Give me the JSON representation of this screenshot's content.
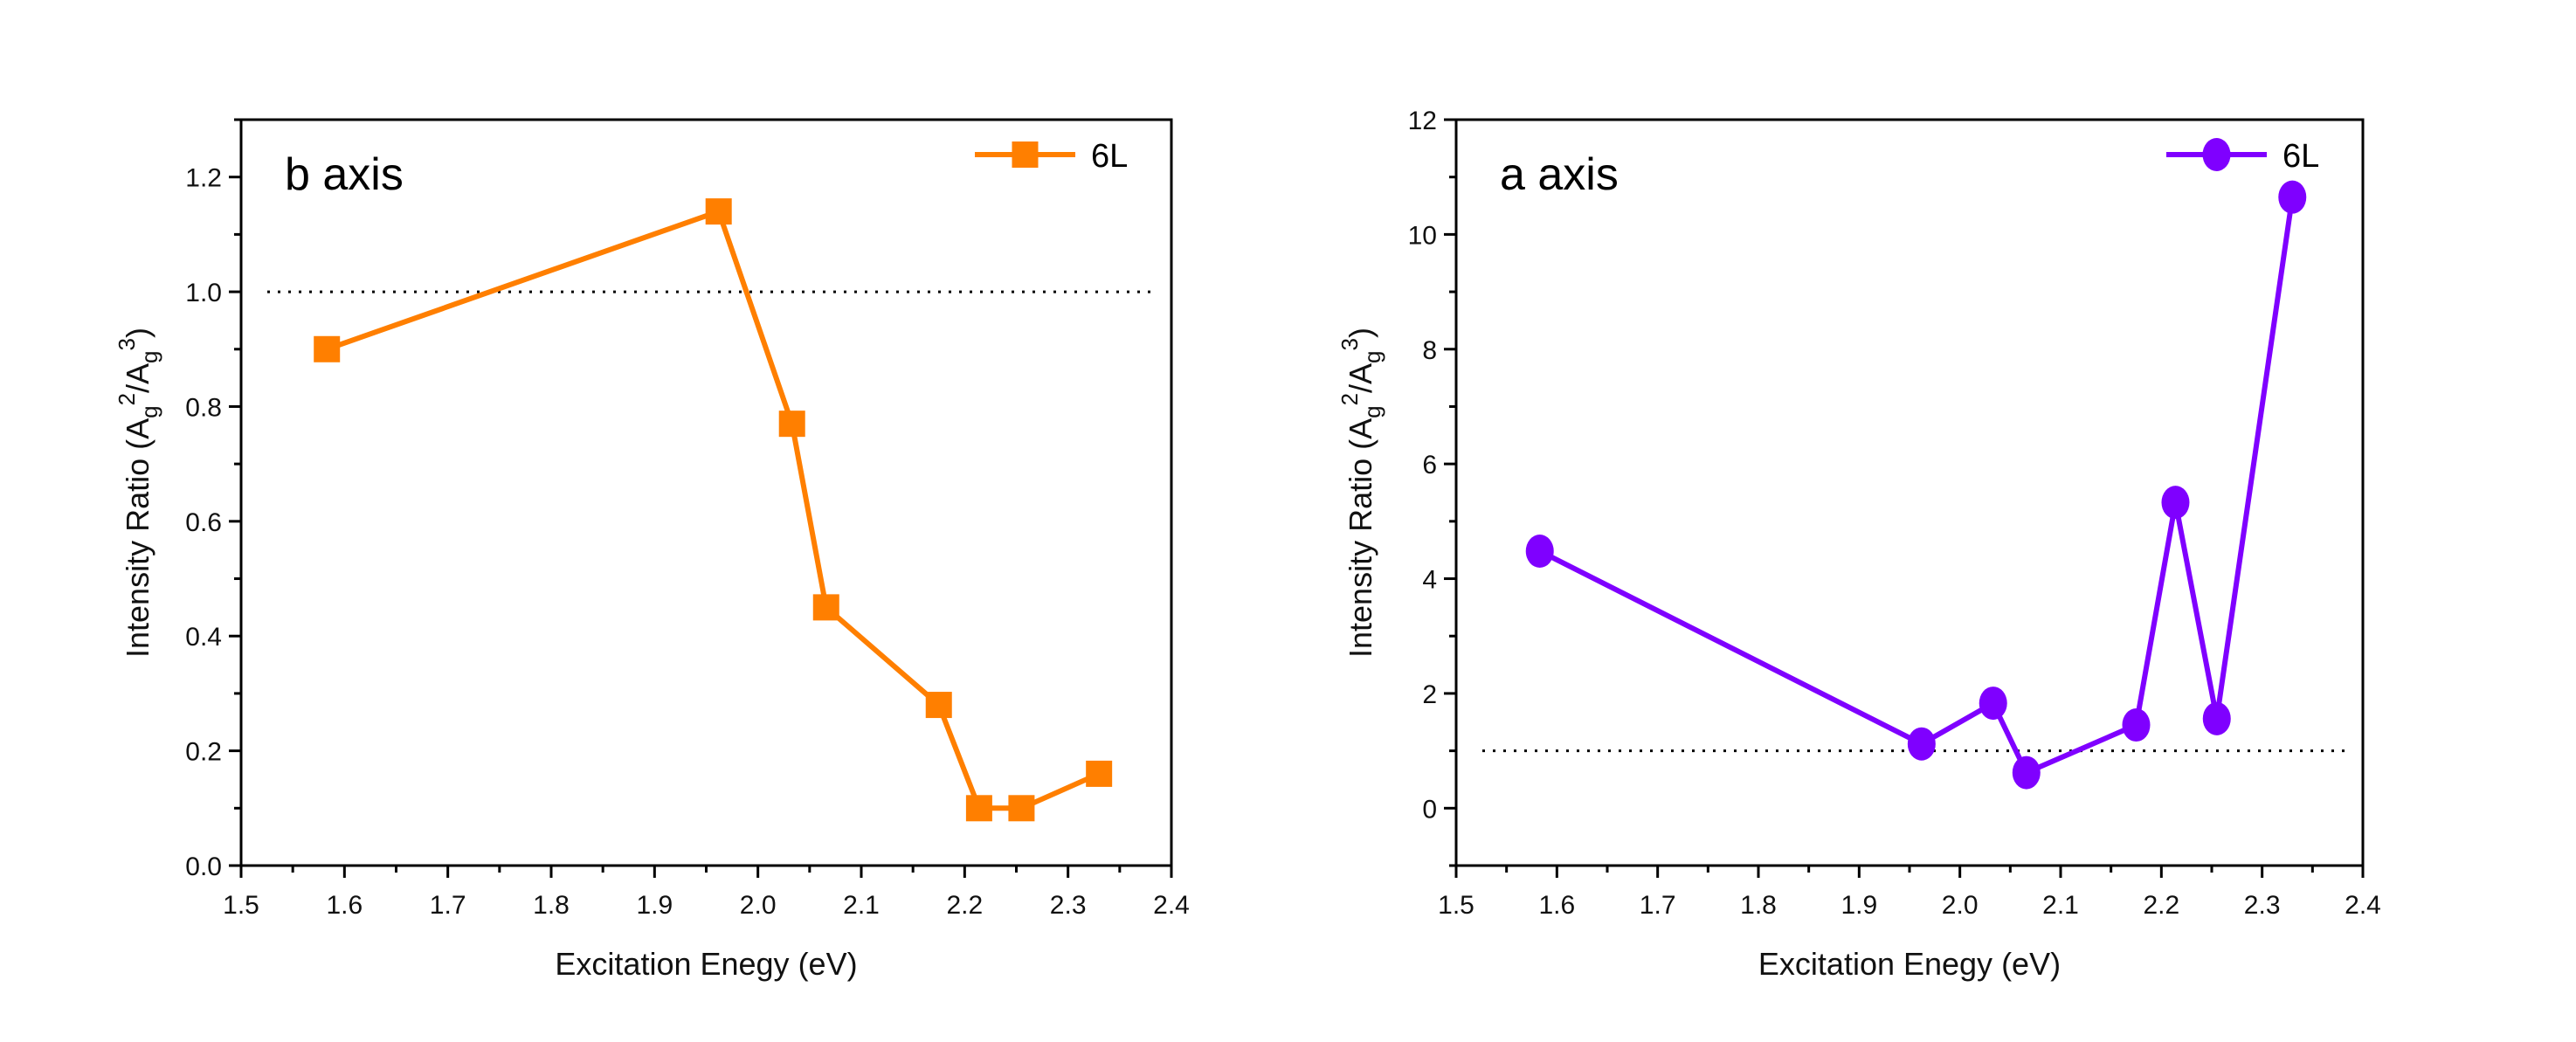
{
  "chart_data": [
    {
      "type": "line",
      "panel_label": "b axis",
      "xlabel": "Excitation Enegy (eV)",
      "ylabel_main": "Intensity Ratio (A",
      "ylabel_sub1": "g",
      "ylabel_sup1": "2",
      "ylabel_mid": "/A",
      "ylabel_sub2": "g",
      "ylabel_sup2": "3",
      "ylabel_end": ")",
      "xlim": [
        1.5,
        2.4
      ],
      "ylim": [
        0,
        1.3
      ],
      "xticks": [
        1.5,
        1.6,
        1.7,
        1.8,
        1.9,
        2.0,
        2.1,
        2.2,
        2.3,
        2.4
      ],
      "xtick_labels": [
        "1.5",
        "1.6",
        "1.7",
        "1.8",
        "1.9",
        "2.0",
        "2.1",
        "2.2",
        "2.3",
        "2.4"
      ],
      "yticks": [
        0,
        0.2,
        0.4,
        0.6,
        0.8,
        1.0,
        1.2
      ],
      "ytick_labels": [
        "0.0",
        "0.2",
        "0.4",
        "0.6",
        "0.8",
        "1.0",
        "1.2"
      ],
      "yminor": 0.1,
      "reference_line": 1.0,
      "legend_position": "top-right",
      "series": [
        {
          "name": "6L",
          "marker": "square",
          "color": "#FF7F00",
          "x": [
            1.583,
            1.962,
            2.033,
            2.066,
            2.175,
            2.214,
            2.255,
            2.33
          ],
          "y": [
            0.9,
            1.14,
            0.77,
            0.45,
            0.28,
            0.1,
            0.1,
            0.16
          ]
        }
      ]
    },
    {
      "type": "line",
      "panel_label": "a axis",
      "xlabel": "Excitation Enegy (eV)",
      "ylabel_main": "Intensity Ratio (A",
      "ylabel_sub1": "g",
      "ylabel_sup1": "2",
      "ylabel_mid": "/A",
      "ylabel_sub2": "g",
      "ylabel_sup2": "3",
      "ylabel_end": ")",
      "xlim": [
        1.5,
        2.4
      ],
      "ylim": [
        -1,
        12
      ],
      "xticks": [
        1.5,
        1.6,
        1.7,
        1.8,
        1.9,
        2.0,
        2.1,
        2.2,
        2.3,
        2.4
      ],
      "xtick_labels": [
        "1.5",
        "1.6",
        "1.7",
        "1.8",
        "1.9",
        "2.0",
        "2.1",
        "2.2",
        "2.3",
        "2.4"
      ],
      "yticks": [
        0,
        2,
        4,
        6,
        8,
        10,
        12
      ],
      "ytick_labels": [
        "0",
        "2",
        "4",
        "6",
        "8",
        "10",
        "12"
      ],
      "yminor": 1,
      "reference_line": 1.0,
      "legend_position": "top-right",
      "series": [
        {
          "name": "6L",
          "marker": "circle",
          "color": "#7F00FF",
          "x": [
            1.583,
            1.962,
            2.033,
            2.066,
            2.175,
            2.214,
            2.255,
            2.33
          ],
          "y": [
            4.48,
            1.12,
            1.83,
            0.62,
            1.45,
            5.33,
            1.56,
            10.65
          ]
        }
      ]
    }
  ]
}
